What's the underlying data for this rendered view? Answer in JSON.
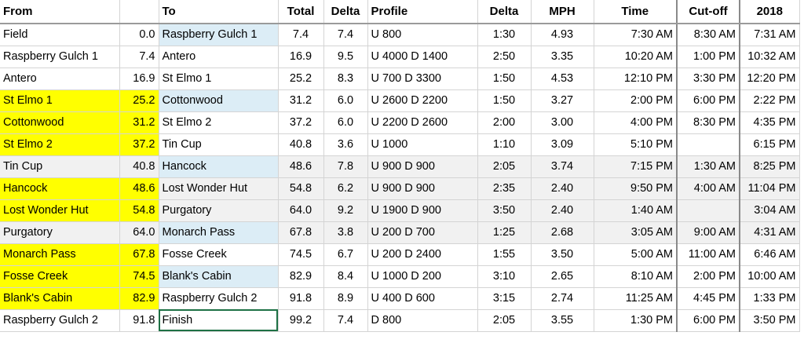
{
  "headers": [
    "From",
    "",
    "To",
    "Total",
    "Delta",
    "Profile",
    "Delta",
    "MPH",
    "Time",
    "Cut-off",
    "2018"
  ],
  "rows": [
    {
      "from": "Field",
      "from_mile": "0.0",
      "to": "Raspberry Gulch 1",
      "total": "7.4",
      "delta": "7.4",
      "profile": "U 800",
      "delta_time": "1:30",
      "mph": "4.93",
      "time": "7:30 AM",
      "cutoff": "8:30 AM",
      "y2018": "7:31 AM",
      "from_yellow": false,
      "to_blue": true,
      "grey": false
    },
    {
      "from": "Raspberry Gulch 1",
      "from_mile": "7.4",
      "to": "Antero",
      "total": "16.9",
      "delta": "9.5",
      "profile": "U 4000  D 1400",
      "delta_time": "2:50",
      "mph": "3.35",
      "time": "10:20 AM",
      "cutoff": "1:00 PM",
      "y2018": "10:32 AM",
      "from_yellow": false,
      "to_blue": false,
      "grey": false
    },
    {
      "from": "Antero",
      "from_mile": "16.9",
      "to": "St Elmo 1",
      "total": "25.2",
      "delta": "8.3",
      "profile": "U 700  D 3300",
      "delta_time": "1:50",
      "mph": "4.53",
      "time": "12:10 PM",
      "cutoff": "3:30 PM",
      "y2018": "12:20 PM",
      "from_yellow": false,
      "to_blue": false,
      "grey": false
    },
    {
      "from": "St Elmo 1",
      "from_mile": "25.2",
      "to": "Cottonwood",
      "total": "31.2",
      "delta": "6.0",
      "profile": "U 2600  D 2200",
      "delta_time": "1:50",
      "mph": "3.27",
      "time": "2:00 PM",
      "cutoff": "6:00 PM",
      "y2018": "2:22 PM",
      "from_yellow": true,
      "to_blue": true,
      "grey": false
    },
    {
      "from": "Cottonwood",
      "from_mile": "31.2",
      "to": "St Elmo 2",
      "total": "37.2",
      "delta": "6.0",
      "profile": "U 2200  D 2600",
      "delta_time": "2:00",
      "mph": "3.00",
      "time": "4:00 PM",
      "cutoff": "8:30 PM",
      "y2018": "4:35 PM",
      "from_yellow": true,
      "to_blue": false,
      "grey": false
    },
    {
      "from": "St Elmo 2",
      "from_mile": "37.2",
      "to": "Tin Cup",
      "total": "40.8",
      "delta": "3.6",
      "profile": "U 1000",
      "delta_time": "1:10",
      "mph": "3.09",
      "time": "5:10 PM",
      "cutoff": "",
      "y2018": "6:15 PM",
      "from_yellow": true,
      "to_blue": false,
      "grey": false
    },
    {
      "from": "Tin Cup",
      "from_mile": "40.8",
      "to": "Hancock",
      "total": "48.6",
      "delta": "7.8",
      "profile": "U 900  D 900",
      "delta_time": "2:05",
      "mph": "3.74",
      "time": "7:15 PM",
      "cutoff": "1:30 AM",
      "y2018": "8:25 PM",
      "from_yellow": false,
      "to_blue": true,
      "grey": true
    },
    {
      "from": "Hancock",
      "from_mile": "48.6",
      "to": "Lost Wonder Hut",
      "total": "54.8",
      "delta": "6.2",
      "profile": "U 900  D 900",
      "delta_time": "2:35",
      "mph": "2.40",
      "time": "9:50 PM",
      "cutoff": "4:00 AM",
      "y2018": "11:04 PM",
      "from_yellow": true,
      "to_blue": false,
      "grey": true
    },
    {
      "from": "Lost Wonder Hut",
      "from_mile": "54.8",
      "to": "Purgatory",
      "total": "64.0",
      "delta": "9.2",
      "profile": "U 1900  D 900",
      "delta_time": "3:50",
      "mph": "2.40",
      "time": "1:40 AM",
      "cutoff": "",
      "y2018": "3:04 AM",
      "from_yellow": true,
      "to_blue": false,
      "grey": true
    },
    {
      "from": "Purgatory",
      "from_mile": "64.0",
      "to": "Monarch Pass",
      "total": "67.8",
      "delta": "3.8",
      "profile": "U 200  D 700",
      "delta_time": "1:25",
      "mph": "2.68",
      "time": "3:05 AM",
      "cutoff": "9:00 AM",
      "y2018": "4:31 AM",
      "from_yellow": false,
      "to_blue": true,
      "grey": true
    },
    {
      "from": "Monarch Pass",
      "from_mile": "67.8",
      "to": "Fosse Creek",
      "total": "74.5",
      "delta": "6.7",
      "profile": "U 200  D 2400",
      "delta_time": "1:55",
      "mph": "3.50",
      "time": "5:00 AM",
      "cutoff": "11:00 AM",
      "y2018": "6:46 AM",
      "from_yellow": true,
      "to_blue": false,
      "grey": false
    },
    {
      "from": "Fosse Creek",
      "from_mile": "74.5",
      "to": "Blank's Cabin",
      "total": "82.9",
      "delta": "8.4",
      "profile": "U 1000  D 200",
      "delta_time": "3:10",
      "mph": "2.65",
      "time": "8:10 AM",
      "cutoff": "2:00 PM",
      "y2018": "10:00 AM",
      "from_yellow": true,
      "to_blue": true,
      "grey": false
    },
    {
      "from": "Blank's Cabin",
      "from_mile": "82.9",
      "to": "Raspberry Gulch 2",
      "total": "91.8",
      "delta": "8.9",
      "profile": "U 400  D 600",
      "delta_time": "3:15",
      "mph": "2.74",
      "time": "11:25 AM",
      "cutoff": "4:45 PM",
      "y2018": "1:33 PM",
      "from_yellow": true,
      "to_blue": false,
      "grey": false
    },
    {
      "from": "Raspberry Gulch 2",
      "from_mile": "91.8",
      "to": "Finish",
      "total": "99.2",
      "delta": "7.4",
      "profile": "D 800",
      "delta_time": "2:05",
      "mph": "3.55",
      "time": "1:30 PM",
      "cutoff": "6:00 PM",
      "y2018": "3:50 PM",
      "from_yellow": false,
      "to_blue": false,
      "grey": false,
      "to_selected": true
    }
  ],
  "colors": {
    "yellow": "#ffff00",
    "blue": "#dcedf6",
    "grey": "#f1f1f1",
    "selection": "#1e7145"
  }
}
